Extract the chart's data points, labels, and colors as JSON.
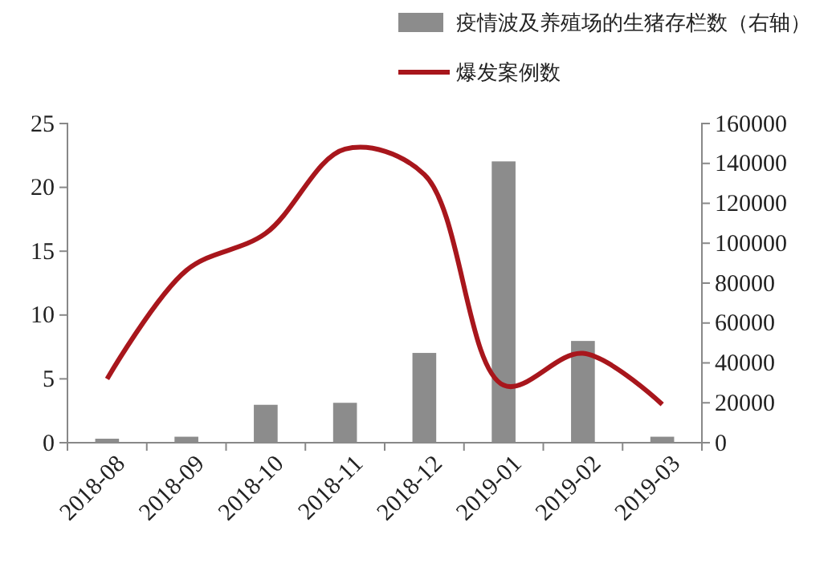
{
  "chart_data": {
    "type": "bar",
    "categories": [
      "2018-08",
      "2018-09",
      "2018-10",
      "2018-11",
      "2018-12",
      "2019-01",
      "2019-02",
      "2019-03"
    ],
    "series": [
      {
        "name": "疫情波及养殖场的生猪存栏数（右轴）",
        "axis": "y2",
        "color": "#8c8c8c",
        "values": [
          2000,
          3000,
          19000,
          20000,
          45000,
          141000,
          51000,
          3000
        ]
      },
      {
        "name": "爆发案例数",
        "type": "line",
        "axis": "y",
        "color": "#a8161c",
        "values": [
          5,
          13.5,
          16.4,
          23,
          21,
          4.5,
          7,
          3
        ]
      }
    ],
    "ylim": [
      0,
      25
    ],
    "yticks": [
      0,
      5,
      10,
      15,
      20,
      25
    ],
    "y2lim": [
      0,
      160000
    ],
    "y2ticks": [
      0,
      20000,
      40000,
      60000,
      80000,
      100000,
      120000,
      140000,
      160000
    ],
    "legend": "top",
    "grid": false
  }
}
